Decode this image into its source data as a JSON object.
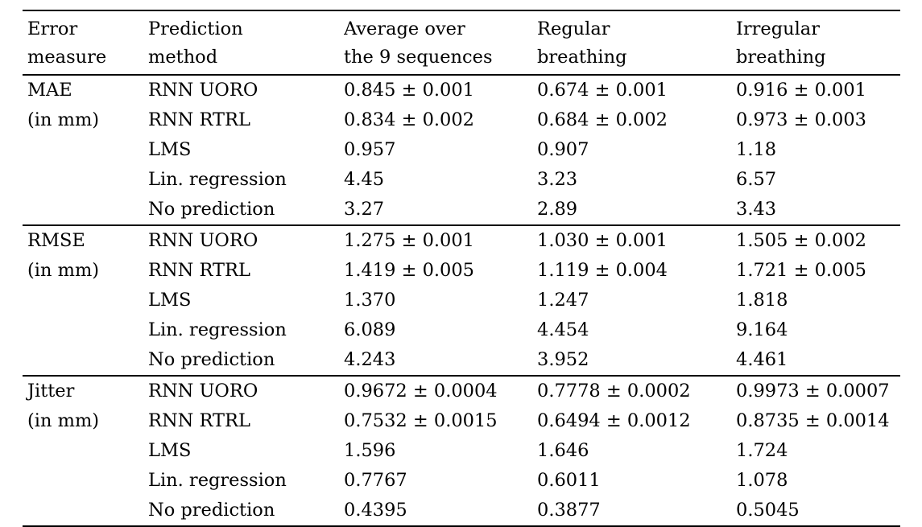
{
  "table": {
    "headers": [
      {
        "line1": "Error",
        "line2": "measure"
      },
      {
        "line1": "Prediction",
        "line2": "method"
      },
      {
        "line1": "Average over",
        "line2": "the 9 sequences"
      },
      {
        "line1": "Regular",
        "line2": "breathing"
      },
      {
        "line1": "Irregular",
        "line2": "breathing"
      }
    ],
    "sections": [
      {
        "measure": "MAE",
        "unit": "(in mm)",
        "rows": [
          {
            "method": "RNN UORO",
            "avg": "0.845 ± 0.001",
            "regular": "0.674 ± 0.001",
            "irregular": "0.916 ± 0.001"
          },
          {
            "method": "RNN RTRL",
            "avg": "0.834 ± 0.002",
            "regular": "0.684 ± 0.002",
            "irregular": "0.973 ± 0.003"
          },
          {
            "method": "LMS",
            "avg": "0.957",
            "regular": "0.907",
            "irregular": "1.18"
          },
          {
            "method": "Lin. regression",
            "avg": "4.45",
            "regular": "3.23",
            "irregular": "6.57"
          },
          {
            "method": "No prediction",
            "avg": "3.27",
            "regular": "2.89",
            "irregular": "3.43"
          }
        ]
      },
      {
        "measure": "RMSE",
        "unit": "(in mm)",
        "rows": [
          {
            "method": "RNN UORO",
            "avg": "1.275 ± 0.001",
            "regular": "1.030 ± 0.001",
            "irregular": "1.505 ± 0.002"
          },
          {
            "method": "RNN RTRL",
            "avg": "1.419 ± 0.005",
            "regular": "1.119 ± 0.004",
            "irregular": "1.721 ± 0.005"
          },
          {
            "method": "LMS",
            "avg": "1.370",
            "regular": "1.247",
            "irregular": "1.818"
          },
          {
            "method": "Lin. regression",
            "avg": "6.089",
            "regular": "4.454",
            "irregular": "9.164"
          },
          {
            "method": "No prediction",
            "avg": "4.243",
            "regular": "3.952",
            "irregular": "4.461"
          }
        ]
      },
      {
        "measure": "Jitter",
        "unit": "(in mm)",
        "rows": [
          {
            "method": "RNN UORO",
            "avg": "0.9672 ± 0.0004",
            "regular": "0.7778 ± 0.0002",
            "irregular": "0.9973 ± 0.0007"
          },
          {
            "method": "RNN RTRL",
            "avg": "0.7532 ± 0.0015",
            "regular": "0.6494 ± 0.0012",
            "irregular": "0.8735 ± 0.0014"
          },
          {
            "method": "LMS",
            "avg": "1.596",
            "regular": "1.646",
            "irregular": "1.724"
          },
          {
            "method": "Lin. regression",
            "avg": "0.7767",
            "regular": "0.6011",
            "irregular": "1.078"
          },
          {
            "method": "No prediction",
            "avg": "0.4395",
            "regular": "0.3877",
            "irregular": "0.5045"
          }
        ]
      }
    ]
  }
}
